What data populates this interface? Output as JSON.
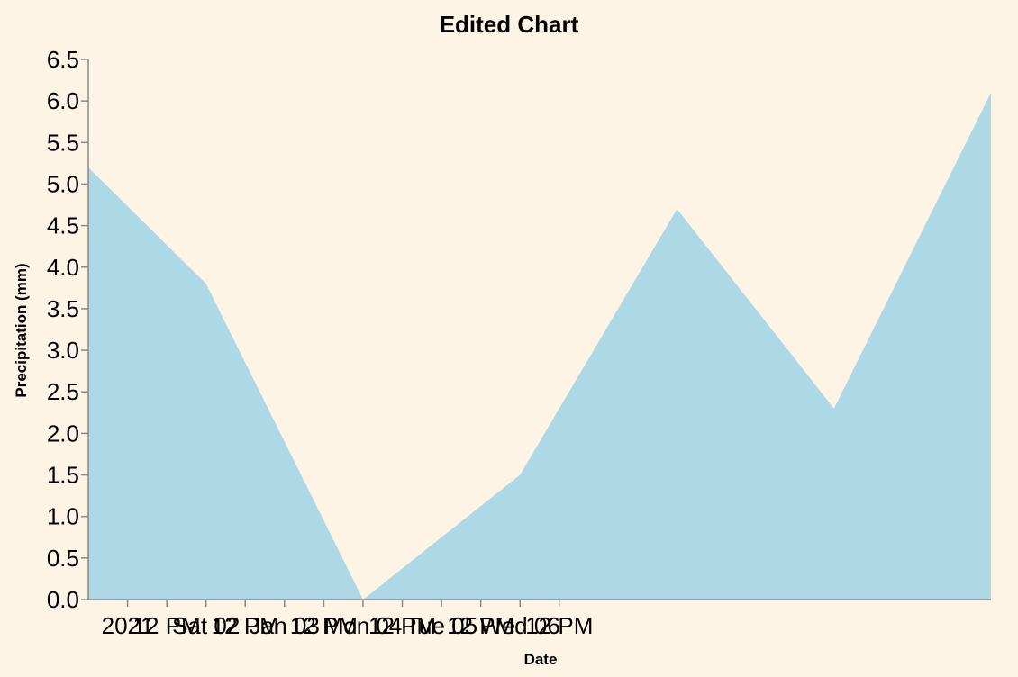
{
  "colors": {
    "background": "#fef4e6",
    "area": "#add8e6",
    "axis": "#888888"
  },
  "chart_data": {
    "type": "area",
    "title": "Edited Chart",
    "xlabel": "Date",
    "ylabel": "Precipitation (mm)",
    "x": [
      "2021-01-01T00:00",
      "2021-01-01T18:00",
      "2021-01-02T18:00",
      "2021-01-03T18:00",
      "2021-01-04T18:00",
      "2021-01-05T18:00",
      "2021-01-06T18:00"
    ],
    "values": [
      5.2,
      3.8,
      0.0,
      1.5,
      4.7,
      2.3,
      6.1
    ],
    "xlim": [
      "2021-01-01T00:00",
      "2021-01-06T18:00"
    ],
    "ylim": [
      0,
      6.5
    ],
    "y_ticks": [
      "0.0",
      "0.5",
      "1.0",
      "1.5",
      "2.0",
      "2.5",
      "3.0",
      "3.5",
      "4.0",
      "4.5",
      "5.0",
      "5.5",
      "6.0",
      "6.5"
    ],
    "x_ticks": [
      {
        "t": "2021-01-01T06:00",
        "label": "2021"
      },
      {
        "t": "2021-01-01T12:00",
        "label": "12 PM"
      },
      {
        "t": "2021-01-01T18:00",
        "label": "Sat 02"
      },
      {
        "t": "2021-01-02T00:00",
        "label": "12 PM"
      },
      {
        "t": "2021-01-02T06:00",
        "label": "Jan 03"
      },
      {
        "t": "2021-01-02T12:00",
        "label": "12 PM"
      },
      {
        "t": "2021-01-02T18:00",
        "label": "Mon 04"
      },
      {
        "t": "2021-01-03T00:00",
        "label": "12 PM"
      },
      {
        "t": "2021-01-03T06:00",
        "label": "Tue 05"
      },
      {
        "t": "2021-01-03T12:00",
        "label": "12 PM"
      },
      {
        "t": "2021-01-03T18:00",
        "label": "Wed 06"
      },
      {
        "t": "2021-01-04T00:00",
        "label": "12 PM"
      }
    ],
    "grid": false,
    "legend": "none"
  }
}
